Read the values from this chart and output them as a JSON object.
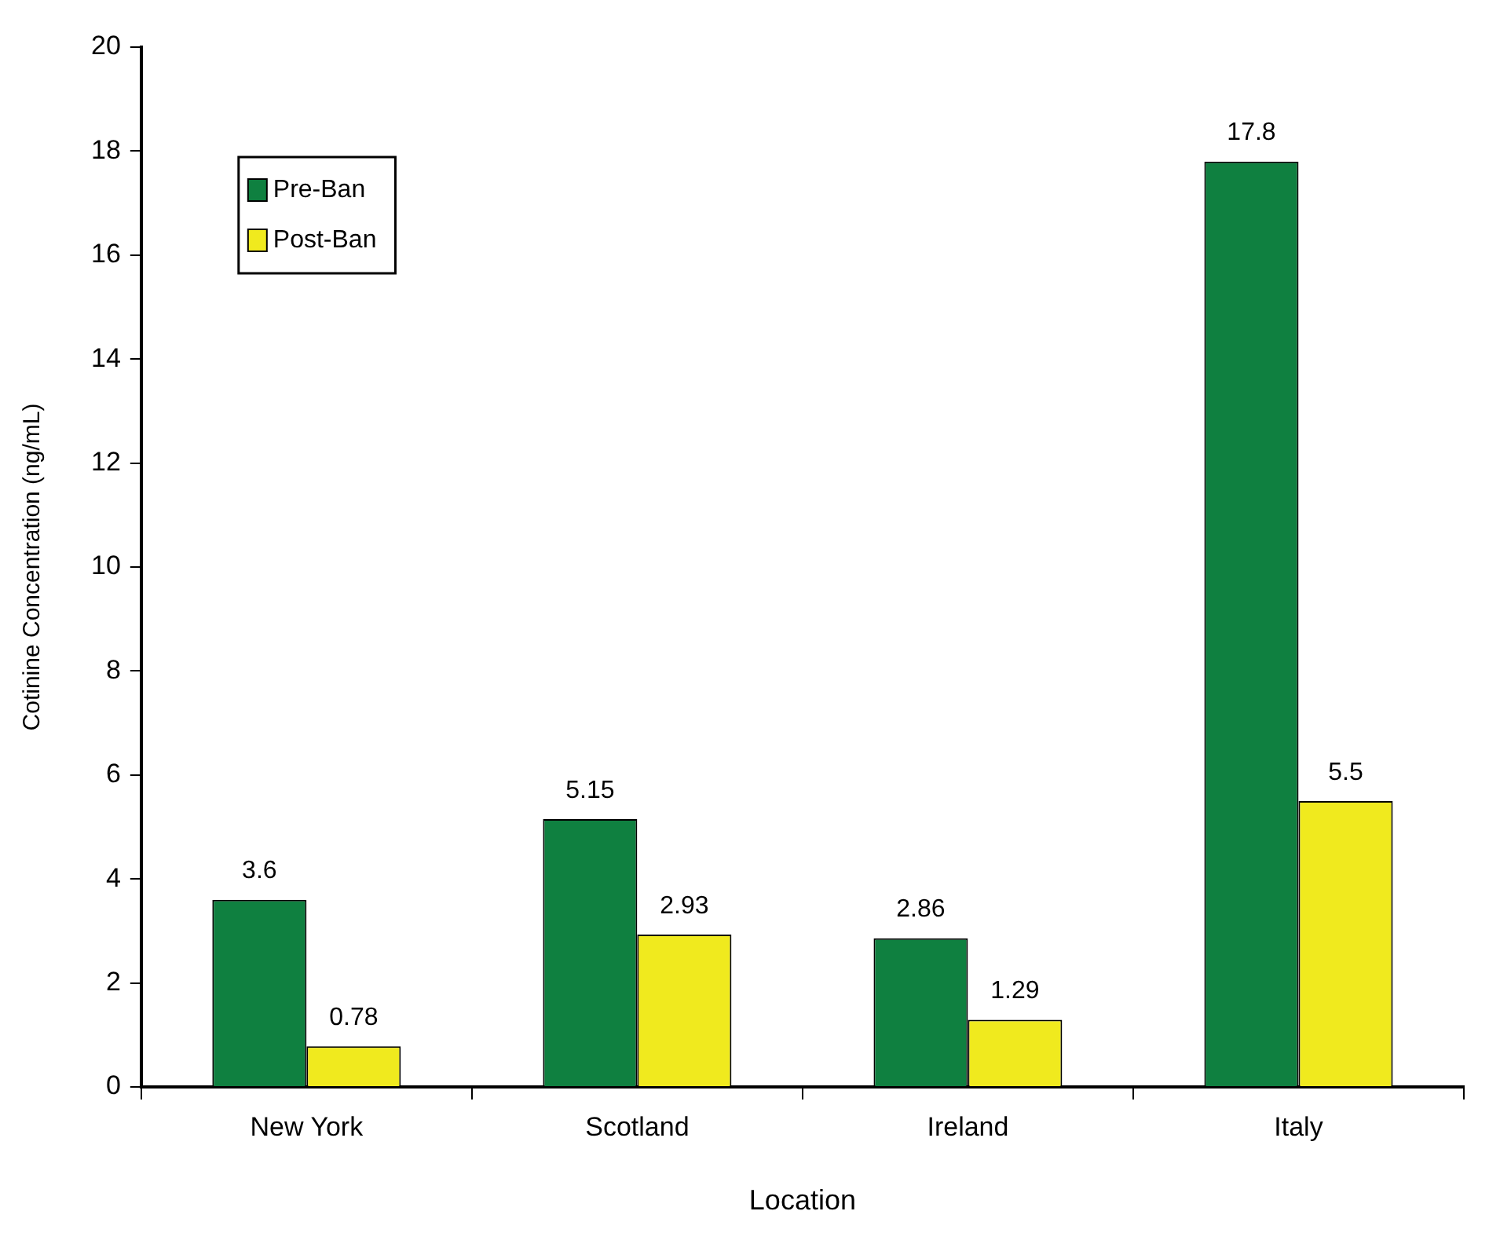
{
  "chart_data": {
    "type": "bar",
    "xlabel": "Location",
    "ylabel": "Cotinine Concentration (ng/mL)",
    "categories": [
      "New York",
      "Scotland",
      "Ireland",
      "Italy"
    ],
    "series": [
      {
        "name": "Pre-Ban",
        "color": "#0f8040",
        "values": [
          3.6,
          5.15,
          2.86,
          17.8
        ]
      },
      {
        "name": "Post-Ban",
        "color": "#f0ea1e",
        "values": [
          0.78,
          2.93,
          1.29,
          5.5
        ]
      }
    ],
    "ylim": [
      0,
      20
    ],
    "yticks": [
      0,
      2,
      4,
      6,
      8,
      10,
      12,
      14,
      16,
      18,
      20
    ],
    "grid": false,
    "legend": "top left",
    "data_labels": true
  }
}
